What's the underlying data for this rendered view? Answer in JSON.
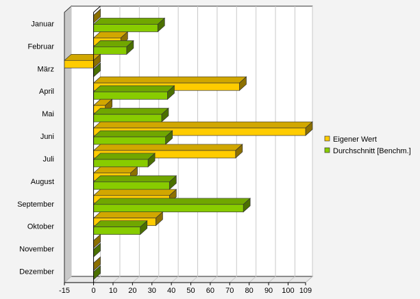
{
  "chart_data": {
    "type": "bar",
    "orientation": "horizontal",
    "style": "3d",
    "categories": [
      "Januar",
      "Februar",
      "März",
      "April",
      "Mai",
      "Juni",
      "Juli",
      "August",
      "September",
      "Oktober",
      "November",
      "Dezember"
    ],
    "series": [
      {
        "name": "Eigener Wert",
        "color": "#ffcc00",
        "values": [
          0,
          14,
          -15,
          75,
          6,
          109,
          73,
          19,
          39,
          32,
          0,
          0
        ]
      },
      {
        "name": "Durchschnitt [Benchm.]",
        "color": "#88cc00",
        "values": [
          33,
          17,
          -0.1,
          38,
          35,
          37,
          28,
          39,
          77,
          24,
          0,
          0
        ]
      }
    ],
    "xlim": [
      -15,
      109
    ],
    "xticks": [
      "-15",
      "0",
      "10",
      "20",
      "30",
      "40",
      "50",
      "60",
      "70",
      "80",
      "90",
      "100",
      "109"
    ],
    "grid": true,
    "legend_position": "right"
  }
}
